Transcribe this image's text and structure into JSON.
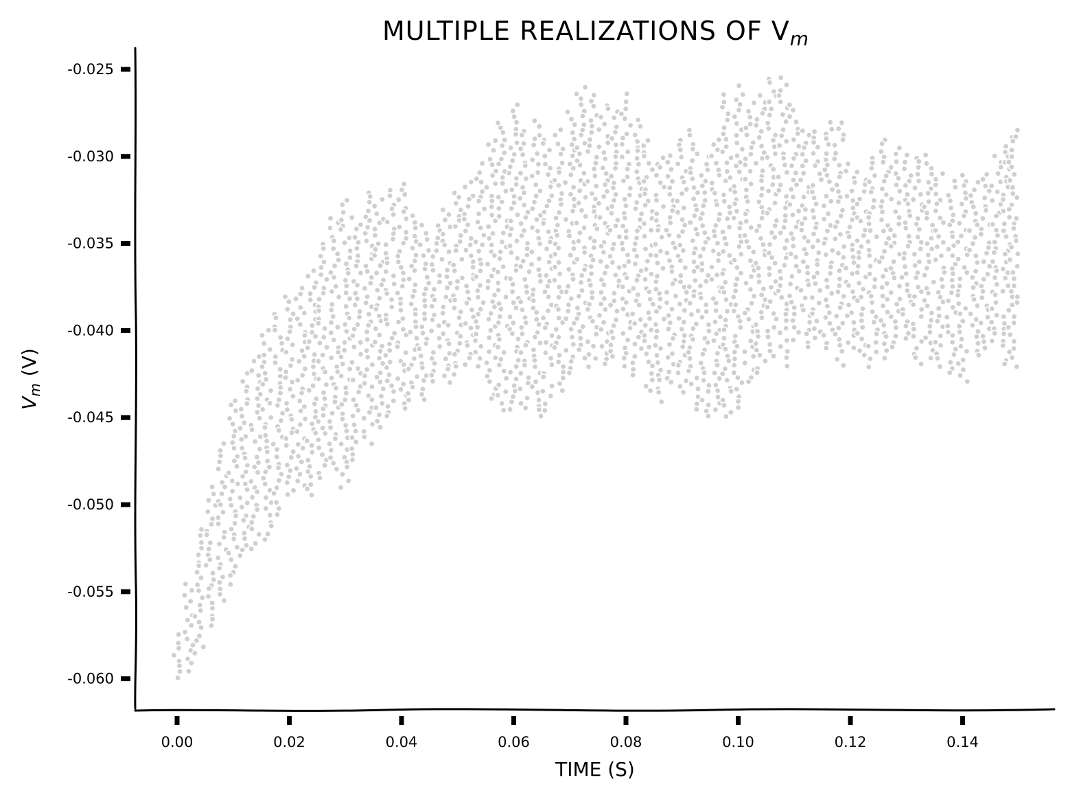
{
  "chart_data": {
    "type": "scatter",
    "title": "MULTIPLE REALIZATIONS OF V",
    "title_subscript": "m",
    "xlabel": "TIME (S)",
    "ylabel": "V",
    "ylabel_subscript": "m",
    "ylabel_unit": "(V)",
    "xlim": [
      -0.0075,
      0.157
    ],
    "ylim": [
      -0.0617,
      -0.024
    ],
    "x_ticks": [
      0.0,
      0.02,
      0.04,
      0.06,
      0.08,
      0.1,
      0.12,
      0.14
    ],
    "x_tick_labels": [
      "0.00",
      "0.02",
      "0.04",
      "0.06",
      "0.08",
      "0.10",
      "0.12",
      "0.14"
    ],
    "y_ticks": [
      -0.025,
      -0.03,
      -0.035,
      -0.04,
      -0.045,
      -0.05,
      -0.055,
      -0.06
    ],
    "y_tick_labels": [
      "-0.025",
      "-0.030",
      "-0.035",
      "-0.040",
      "-0.045",
      "-0.050",
      "-0.055",
      "-0.060"
    ],
    "grid": false,
    "style": "xkcd",
    "colors": {
      "points": "#cfcfcf",
      "point_edge": "#ffffff",
      "axis": "#000000"
    },
    "series_note_visible": false,
    "series": [
      {
        "x": [
          0.0,
          0.002,
          0.004,
          0.006,
          0.008,
          0.01,
          0.012,
          0.014,
          0.016,
          0.018,
          0.02,
          0.022,
          0.024,
          0.026,
          0.028,
          0.03,
          0.032,
          0.034,
          0.036,
          0.038,
          0.04,
          0.042,
          0.044,
          0.046,
          0.048,
          0.05,
          0.052,
          0.054,
          0.056,
          0.058,
          0.06,
          0.062,
          0.064,
          0.066,
          0.068,
          0.07,
          0.072,
          0.074,
          0.076,
          0.078,
          0.08,
          0.082,
          0.084,
          0.086,
          0.088,
          0.09,
          0.092,
          0.094,
          0.096,
          0.098,
          0.1,
          0.102,
          0.104,
          0.106,
          0.108,
          0.11,
          0.112,
          0.114,
          0.116,
          0.118,
          0.12,
          0.122,
          0.124,
          0.126,
          0.128,
          0.13,
          0.132,
          0.134,
          0.136,
          0.138,
          0.14,
          0.142,
          0.144,
          0.146,
          0.148,
          0.149
        ],
        "upper": [
          -0.0575,
          -0.0545,
          -0.0515,
          -0.049,
          -0.0465,
          -0.044,
          -0.0425,
          -0.0415,
          -0.04,
          -0.039,
          -0.038,
          -0.0375,
          -0.0365,
          -0.035,
          -0.0335,
          -0.0325,
          -0.0335,
          -0.032,
          -0.0325,
          -0.032,
          -0.0315,
          -0.0335,
          -0.034,
          -0.034,
          -0.033,
          -0.032,
          -0.0315,
          -0.0305,
          -0.029,
          -0.028,
          -0.027,
          -0.0285,
          -0.028,
          -0.029,
          -0.0285,
          -0.0275,
          -0.026,
          -0.0265,
          -0.027,
          -0.0275,
          -0.0265,
          -0.028,
          -0.029,
          -0.03,
          -0.03,
          -0.029,
          -0.0285,
          -0.03,
          -0.029,
          -0.0265,
          -0.026,
          -0.027,
          -0.0265,
          -0.0255,
          -0.0255,
          -0.027,
          -0.0285,
          -0.0285,
          -0.028,
          -0.028,
          -0.0305,
          -0.031,
          -0.03,
          -0.029,
          -0.0295,
          -0.03,
          -0.03,
          -0.03,
          -0.031,
          -0.0315,
          -0.031,
          -0.0315,
          -0.031,
          -0.03,
          -0.029,
          -0.0285
        ],
        "lower": [
          -0.06,
          -0.0595,
          -0.0585,
          -0.057,
          -0.0555,
          -0.0545,
          -0.053,
          -0.0525,
          -0.052,
          -0.0505,
          -0.0495,
          -0.049,
          -0.0495,
          -0.0485,
          -0.048,
          -0.049,
          -0.0475,
          -0.0465,
          -0.0455,
          -0.045,
          -0.0445,
          -0.044,
          -0.044,
          -0.043,
          -0.043,
          -0.0425,
          -0.042,
          -0.042,
          -0.044,
          -0.0445,
          -0.0445,
          -0.0445,
          -0.045,
          -0.0445,
          -0.0435,
          -0.0425,
          -0.0415,
          -0.042,
          -0.042,
          -0.0415,
          -0.042,
          -0.0425,
          -0.0435,
          -0.044,
          -0.043,
          -0.0435,
          -0.0445,
          -0.045,
          -0.0445,
          -0.045,
          -0.0445,
          -0.043,
          -0.0425,
          -0.0415,
          -0.042,
          -0.0405,
          -0.041,
          -0.0405,
          -0.041,
          -0.042,
          -0.041,
          -0.0415,
          -0.042,
          -0.0415,
          -0.041,
          -0.0405,
          -0.042,
          -0.0415,
          -0.042,
          -0.0425,
          -0.043,
          -0.0415,
          -0.041,
          -0.0405,
          -0.042,
          -0.042
        ]
      }
    ]
  }
}
